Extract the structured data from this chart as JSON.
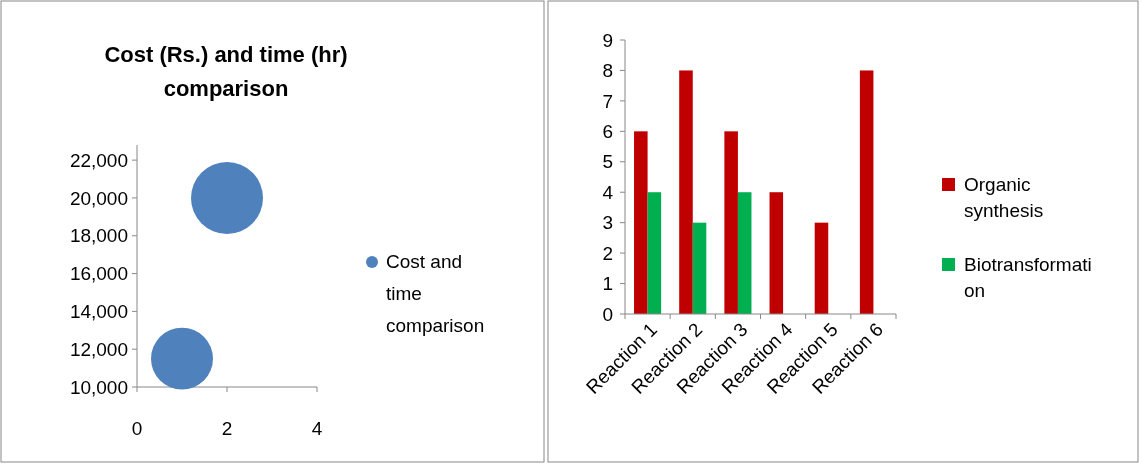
{
  "chart_data": [
    {
      "type": "bubble",
      "title": "Cost (Rs.) and time (hr) comparison",
      "x": [
        1,
        2
      ],
      "series": [
        {
          "name": "Cost and time comparison",
          "color": "#4f81bd",
          "values": [
            11500,
            20000
          ],
          "sizes": [
            0.74,
            1
          ]
        }
      ],
      "xlim": [
        0,
        4
      ],
      "xticks": [
        0,
        2,
        4
      ],
      "ylim": [
        10000,
        22800
      ],
      "yticks": [
        {
          "value": 10000,
          "label": "10,000"
        },
        {
          "value": 12000,
          "label": "12,000"
        },
        {
          "value": 14000,
          "label": "14,000"
        },
        {
          "value": 16000,
          "label": "16,000"
        },
        {
          "value": 18000,
          "label": "18,000"
        },
        {
          "value": 20000,
          "label": "20,000"
        },
        {
          "value": 22000,
          "label": "22,000"
        }
      ],
      "legend": "right",
      "grid": false
    },
    {
      "type": "bar",
      "categories": [
        "Reaction 1",
        "Reaction 2",
        "Reaction 3",
        "Reaction 4",
        "Reaction 5",
        "Reaction 6"
      ],
      "series": [
        {
          "name": "Organic synthesis",
          "color": "#c00000",
          "values": [
            6,
            8,
            6,
            4,
            3,
            8
          ]
        },
        {
          "name": "Biotransformation",
          "color": "#00b050",
          "values": [
            4,
            3,
            4,
            0,
            0,
            0
          ]
        }
      ],
      "ylim": [
        0,
        9
      ],
      "yticks": [
        0,
        1,
        2,
        3,
        4,
        5,
        6,
        7,
        8,
        9
      ],
      "legend": "right",
      "grid": false
    }
  ]
}
